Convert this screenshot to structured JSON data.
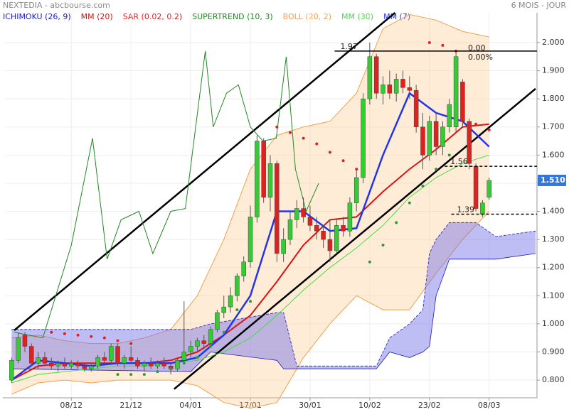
{
  "chart_data": {
    "type": "candlestick",
    "title": "NEXTEDIA - abcbourse.com",
    "subtitle": "6 MOIS - JOUR",
    "xlim": [
      -1,
      79
    ],
    "xticks": [
      {
        "value": 9,
        "label": "08/12"
      },
      {
        "value": 18,
        "label": "21/12"
      },
      {
        "value": 27,
        "label": "04/01"
      },
      {
        "value": 36,
        "label": "17/01"
      },
      {
        "value": 45,
        "label": "30/01"
      },
      {
        "value": 54,
        "label": "10/02"
      },
      {
        "value": 63,
        "label": "23/02"
      },
      {
        "value": 72,
        "label": "08/03"
      }
    ],
    "ylim": [
      0.737,
      2.106
    ],
    "yticks": [
      {
        "value": 2,
        "label": "2.000"
      },
      {
        "value": 1.9,
        "label": "1.900"
      },
      {
        "value": 1.8,
        "label": "1.800"
      },
      {
        "value": 1.7,
        "label": "1.700"
      },
      {
        "value": 1.6,
        "label": "1.600"
      },
      {
        "value": 1.5,
        "label": "1.500"
      },
      {
        "value": 1.4,
        "label": "1.400"
      },
      {
        "value": 1.3,
        "label": "1.300"
      },
      {
        "value": 1.2,
        "label": "1.200"
      },
      {
        "value": 1.1,
        "label": "1.100"
      },
      {
        "value": 1,
        "label": "1.000"
      },
      {
        "value": 0.9,
        "label": "0.900"
      },
      {
        "value": 0.8,
        "label": "0.800"
      }
    ],
    "grid": true,
    "up_color": "#33cc33",
    "down_color": "#dd2222",
    "last": {
      "value": 1.51,
      "label": "1.510",
      "color": "#3377dd"
    },
    "candles": {
      "open": [
        0.8,
        0.87,
        0.96,
        0.92,
        0.86,
        0.88,
        0.86,
        0.85,
        0.86,
        0.85,
        0.86,
        0.85,
        0.84,
        0.85,
        0.88,
        0.87,
        0.92,
        0.86,
        0.88,
        0.87,
        0.85,
        0.86,
        0.85,
        0.86,
        0.85,
        0.84,
        0.87,
        0.9,
        0.92,
        0.94,
        0.93,
        0.98,
        1.04,
        1.06,
        1.1,
        1.17,
        1.22,
        1.38,
        1.65,
        1.45,
        1.57,
        1.25,
        1.3,
        1.37,
        1.41,
        1.38,
        1.35,
        1.33,
        1.3,
        1.26,
        1.35,
        1.33,
        1.43,
        1.52,
        1.8,
        1.95,
        1.82,
        1.85,
        1.82,
        1.87,
        1.84,
        1.83,
        1.7,
        1.6,
        1.72,
        1.63,
        1.7,
        1.7,
        1.86,
        1.72,
        1.56,
        1.39,
        1.45
      ],
      "high": [
        0.88,
        0.97,
        0.97,
        0.93,
        0.9,
        0.9,
        0.88,
        0.87,
        0.88,
        0.87,
        0.87,
        0.86,
        0.86,
        0.89,
        0.9,
        0.93,
        0.93,
        0.89,
        0.92,
        0.88,
        0.87,
        0.88,
        0.87,
        0.88,
        0.86,
        0.88,
        1.08,
        0.94,
        0.95,
        0.96,
        0.99,
        1.05,
        1.1,
        1.13,
        1.18,
        1.24,
        1.42,
        1.67,
        1.66,
        1.6,
        1.58,
        1.34,
        1.4,
        1.44,
        1.45,
        1.42,
        1.38,
        1.35,
        1.37,
        1.37,
        1.38,
        1.45,
        1.55,
        1.82,
        2.0,
        1.96,
        1.88,
        1.9,
        1.89,
        1.9,
        1.88,
        1.85,
        1.75,
        1.74,
        1.75,
        1.72,
        1.8,
        1.97,
        1.87,
        1.73,
        1.57,
        1.44,
        1.52
      ],
      "low": [
        0.79,
        0.86,
        0.9,
        0.85,
        0.84,
        0.85,
        0.84,
        0.83,
        0.84,
        0.84,
        0.84,
        0.83,
        0.83,
        0.84,
        0.86,
        0.86,
        0.85,
        0.84,
        0.86,
        0.84,
        0.83,
        0.84,
        0.84,
        0.84,
        0.82,
        0.83,
        0.86,
        0.88,
        0.9,
        0.91,
        0.92,
        0.97,
        1.02,
        1.04,
        1.08,
        1.15,
        1.2,
        1.36,
        1.43,
        1.4,
        1.22,
        1.22,
        1.28,
        1.34,
        1.36,
        1.33,
        1.3,
        1.27,
        1.22,
        1.25,
        1.31,
        1.31,
        1.4,
        1.5,
        1.78,
        1.8,
        1.78,
        1.8,
        1.79,
        1.82,
        1.8,
        1.68,
        1.55,
        1.58,
        1.6,
        1.6,
        1.68,
        1.68,
        1.7,
        1.55,
        1.4,
        1.38,
        1.44
      ],
      "close": [
        0.87,
        0.95,
        0.92,
        0.86,
        0.88,
        0.86,
        0.85,
        0.86,
        0.85,
        0.86,
        0.85,
        0.84,
        0.85,
        0.88,
        0.87,
        0.92,
        0.86,
        0.88,
        0.87,
        0.85,
        0.86,
        0.85,
        0.86,
        0.85,
        0.84,
        0.87,
        0.9,
        0.92,
        0.94,
        0.93,
        0.98,
        1.04,
        1.06,
        1.1,
        1.17,
        1.22,
        1.38,
        1.65,
        1.45,
        1.57,
        1.25,
        1.3,
        1.37,
        1.41,
        1.38,
        1.35,
        1.33,
        1.3,
        1.26,
        1.35,
        1.33,
        1.43,
        1.52,
        1.8,
        1.95,
        1.82,
        1.85,
        1.82,
        1.87,
        1.84,
        1.83,
        1.7,
        1.6,
        1.72,
        1.63,
        1.7,
        1.78,
        1.95,
        1.72,
        1.57,
        1.41,
        1.43,
        1.51
      ]
    },
    "series": [
      {
        "name": "ICHIMOKU (26, 9)",
        "color": "#1a1acc",
        "kind": "cloud",
        "fill": "rgba(110,110,230,0.45)",
        "x": [
          0,
          27,
          30,
          40,
          41,
          43,
          55,
          57,
          60,
          62,
          63,
          64,
          66,
          70,
          73,
          79
        ],
        "upper": [
          0.98,
          0.98,
          1.0,
          1.04,
          1.04,
          0.85,
          0.85,
          0.95,
          1.0,
          1.05,
          1.25,
          1.3,
          1.36,
          1.36,
          1.31,
          1.33
        ],
        "lower": [
          0.84,
          0.83,
          0.9,
          0.87,
          0.84,
          0.84,
          0.84,
          0.9,
          0.88,
          0.9,
          0.92,
          1.1,
          1.23,
          1.23,
          1.23,
          1.25
        ]
      },
      {
        "name": "MM (20)",
        "color": "#dd1111",
        "kind": "line",
        "width": 2,
        "x": [
          0,
          4,
          8,
          12,
          16,
          20,
          24,
          28,
          32,
          36,
          40,
          44,
          48,
          52,
          56,
          60,
          64,
          68,
          72
        ],
        "values": [
          0.8,
          0.85,
          0.86,
          0.86,
          0.86,
          0.86,
          0.87,
          0.9,
          0.96,
          1.03,
          1.15,
          1.28,
          1.37,
          1.38,
          1.47,
          1.55,
          1.62,
          1.7,
          1.71
        ]
      },
      {
        "name": "SAR (0.02, 0.2)",
        "color": "#dd2222",
        "kind": "dots",
        "x": [
          6,
          8,
          10,
          12,
          14,
          16,
          18,
          40,
          42,
          44,
          46,
          48,
          50,
          52,
          63,
          65,
          67,
          70,
          72
        ],
        "values": [
          0.97,
          0.965,
          0.96,
          0.955,
          0.95,
          0.94,
          0.93,
          1.7,
          1.68,
          1.66,
          1.64,
          1.61,
          1.58,
          1.55,
          2.0,
          1.99,
          1.97,
          1.71,
          1.69
        ]
      },
      {
        "color": "#339933",
        "kind": "dots",
        "x": [
          16,
          18,
          20,
          22,
          24,
          26,
          28,
          30,
          32,
          34,
          36,
          54,
          56,
          58,
          60,
          62,
          64,
          66
        ],
        "values": [
          0.82,
          0.82,
          0.82,
          0.83,
          0.84,
          0.86,
          0.88,
          0.92,
          0.97,
          1.05,
          1.08,
          1.22,
          1.28,
          1.36,
          1.43,
          1.49,
          1.55,
          1.6
        ]
      },
      {
        "name": "SUPERTREND (10, 3)",
        "color": "#228822",
        "kind": "line",
        "width": 1,
        "x": [
          0.4,
          4.7,
          9,
          12.2,
          14.4,
          16.5,
          19.2,
          21.3,
          24,
          26.2,
          29.2,
          30.4,
          32.4,
          34.2,
          36,
          37.9,
          39.9,
          41.4,
          42.8,
          44.4,
          46.3
        ],
        "values": [
          0.97,
          0.95,
          1.28,
          1.66,
          1.23,
          1.37,
          1.4,
          1.25,
          1.4,
          1.41,
          1.97,
          1.7,
          1.82,
          1.85,
          1.7,
          1.65,
          1.66,
          1.95,
          1.55,
          1.4,
          1.5
        ]
      },
      {
        "name": "BOLL (20, 2)",
        "color": "#f0a050",
        "kind": "band",
        "fill": "rgba(255,200,140,0.35)",
        "x": [
          0,
          4,
          8,
          12,
          16,
          20,
          24,
          28,
          32,
          36,
          40,
          44,
          48,
          52,
          56,
          60,
          64,
          68,
          72
        ],
        "upper": [
          0.95,
          0.96,
          0.94,
          0.93,
          0.93,
          0.95,
          0.98,
          1.1,
          1.3,
          1.55,
          1.67,
          1.7,
          1.72,
          1.82,
          2.05,
          2.1,
          2.08,
          2.04,
          2.02
        ],
        "lower": [
          0.75,
          0.79,
          0.8,
          0.79,
          0.8,
          0.8,
          0.8,
          0.78,
          0.72,
          0.7,
          0.72,
          0.88,
          1.0,
          1.1,
          1.05,
          1.05,
          1.18,
          1.3,
          1.4
        ]
      },
      {
        "name": "MM (30)",
        "color": "#44dd44",
        "kind": "line",
        "width": 1,
        "x": [
          0,
          4,
          8,
          12,
          16,
          20,
          24,
          28,
          32,
          36,
          40,
          44,
          48,
          52,
          56,
          60,
          64,
          68,
          72
        ],
        "values": [
          0.79,
          0.82,
          0.83,
          0.84,
          0.85,
          0.85,
          0.86,
          0.87,
          0.9,
          0.95,
          1.03,
          1.12,
          1.2,
          1.27,
          1.35,
          1.45,
          1.52,
          1.57,
          1.6
        ]
      },
      {
        "name": "MM (7)",
        "color": "#2233ee",
        "kind": "line",
        "width": 2.5,
        "x": [
          0,
          4,
          8,
          12,
          16,
          20,
          24,
          28,
          32,
          36,
          40,
          44,
          48,
          52,
          56,
          60,
          64,
          68,
          72
        ],
        "values": [
          0.8,
          0.87,
          0.86,
          0.85,
          0.86,
          0.86,
          0.86,
          0.88,
          0.96,
          1.1,
          1.4,
          1.4,
          1.33,
          1.34,
          1.6,
          1.82,
          1.75,
          1.72,
          1.63
        ]
      }
    ],
    "trendlines": [
      {
        "x": [
          0.4,
          57.8
        ],
        "values": [
          0.977,
          2.106
        ]
      },
      {
        "x": [
          24.5,
          79
        ],
        "values": [
          0.768,
          1.836
        ]
      }
    ],
    "hlines": [
      {
        "value": 1.97,
        "label": "1.97",
        "x_start": 48.7,
        "dash": false,
        "fib_labels": [
          "0.00",
          "0.00%"
        ]
      },
      {
        "value": 1.56,
        "label": "1.56",
        "x_start": 65.3,
        "dash": true
      },
      {
        "value": 1.39,
        "label": "1.39",
        "x_start": 66.3,
        "dash": true
      }
    ]
  }
}
